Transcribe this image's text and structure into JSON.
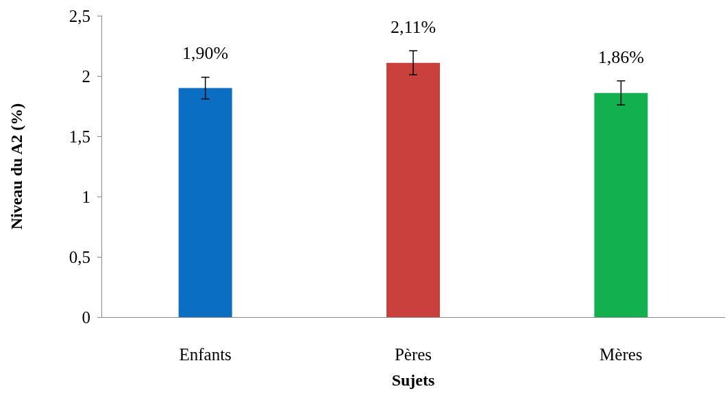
{
  "chart_data": {
    "type": "bar",
    "xlabel": "Sujets",
    "ylabel": "Niveau du A2 (%)",
    "categories": [
      "Enfants",
      "Pères",
      "Mères"
    ],
    "values": [
      1.9,
      2.11,
      1.86
    ],
    "colors": [
      "#0a6fc2",
      "#c9403d",
      "#12b04e"
    ],
    "errors": [
      0.09,
      0.1,
      0.1
    ],
    "value_labels": [
      "1,90%",
      "2,11%",
      "1,86%"
    ],
    "ylim": [
      0,
      2.5
    ],
    "yticks": [
      0,
      {
        "value": 0.5,
        "label": "0,5"
      },
      1,
      {
        "value": 1.5,
        "label": "1,5"
      },
      2,
      {
        "value": 2.5,
        "label": "2,5"
      }
    ]
  }
}
